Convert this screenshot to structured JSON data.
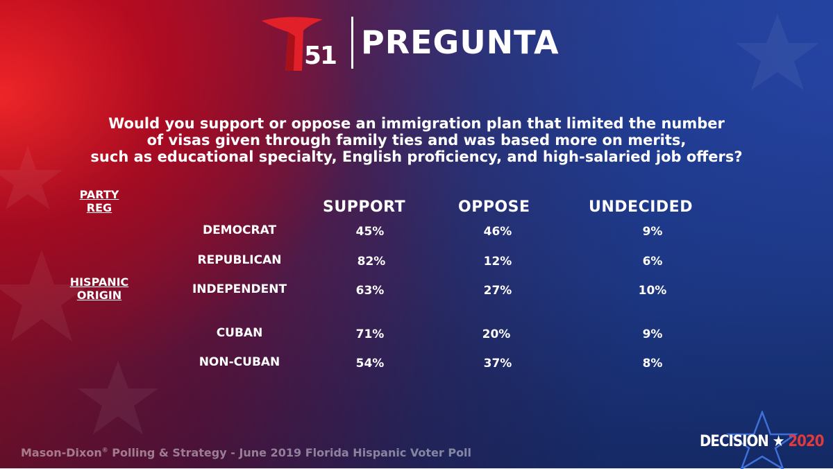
{
  "brand": {
    "channel_number": "51",
    "title": "PREGUNTA"
  },
  "question": {
    "lines": [
      "Would you support or oppose an immigration plan that limited the number",
      "of visas given through family ties and was based more on merits,",
      "such as educational specialty, English proficiency, and high-salaried job offers?"
    ]
  },
  "group_labels": {
    "party_line1": "PARTY",
    "party_line2": "REG",
    "hispanic_line1": "HISPANIC",
    "hispanic_line2": "ORIGIN"
  },
  "chart_data": {
    "type": "table",
    "columns": [
      "SUPPORT",
      "OPPOSE",
      "UNDECIDED"
    ],
    "rows": [
      {
        "label": "DEMOCRAT",
        "values": [
          "45%",
          "46%",
          "9%"
        ]
      },
      {
        "label": "REPUBLICAN",
        "values": [
          "82%",
          "12%",
          "6%"
        ]
      },
      {
        "label": "INDEPENDENT",
        "values": [
          "63%",
          "27%",
          "10%"
        ]
      },
      {
        "label": "CUBAN",
        "values": [
          "71%",
          "20%",
          "9%"
        ]
      },
      {
        "label": "NON-CUBAN",
        "values": [
          "54%",
          "37%",
          "8%"
        ]
      }
    ]
  },
  "footer": {
    "source_pre": "Mason-Dixon",
    "source_reg": "®",
    "source_post": " Polling & Strategy - June 2019 Florida Hispanic Voter Poll"
  },
  "decision_logo": {
    "word": "DECISION",
    "star": "★",
    "year": "2020"
  },
  "colors": {
    "accent_red": "#e2202a",
    "text": "#ffffff"
  }
}
